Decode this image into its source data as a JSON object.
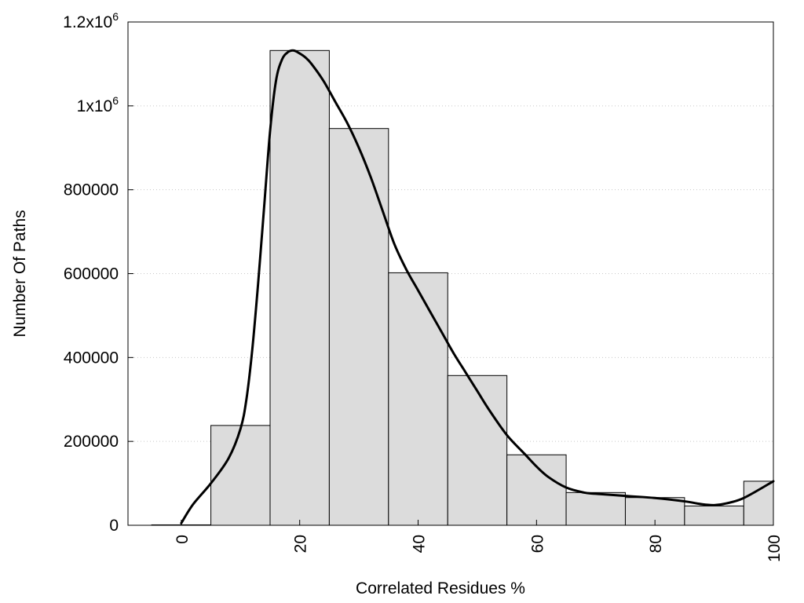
{
  "chart_data": {
    "type": "bar",
    "xlabel": "Correlated Residues %",
    "ylabel": "Number Of Paths",
    "xlim": [
      -9,
      100
    ],
    "ylim": [
      0,
      1200000
    ],
    "bin_width": 10,
    "bins": [
      0,
      10,
      20,
      30,
      40,
      50,
      60,
      70,
      80,
      90,
      100
    ],
    "values": [
      1000,
      238000,
      1132000,
      946000,
      602000,
      357000,
      168000,
      78000,
      66000,
      46000,
      105000
    ],
    "x_ticks": [
      "0",
      "20",
      "40",
      "60",
      "80",
      "100"
    ],
    "y_ticks": [
      "0",
      "200000",
      "400000",
      "600000",
      "800000",
      "1x10^6",
      "1.2x10^6"
    ],
    "smooth_curve": {
      "x": [
        0,
        2,
        5,
        8,
        10,
        11,
        12,
        13,
        14,
        15,
        16,
        17,
        18,
        19,
        20,
        21,
        22,
        24,
        26,
        28,
        30,
        32,
        34,
        36,
        38,
        40,
        42,
        44,
        46,
        48,
        50,
        52,
        55,
        58,
        60,
        62,
        65,
        68,
        70,
        75,
        80,
        85,
        88,
        90,
        92,
        95,
        100
      ],
      "y": [
        5000,
        50000,
        100000,
        160000,
        230000,
        300000,
        420000,
        580000,
        760000,
        940000,
        1060000,
        1110000,
        1128000,
        1132000,
        1125000,
        1115000,
        1100000,
        1060000,
        1010000,
        960000,
        900000,
        830000,
        750000,
        670000,
        610000,
        560000,
        510000,
        460000,
        410000,
        365000,
        320000,
        275000,
        215000,
        170000,
        140000,
        115000,
        90000,
        78000,
        75000,
        70000,
        65000,
        57000,
        50000,
        48000,
        52000,
        65000,
        105000
      ]
    },
    "grid": "horizontal-dotted",
    "colors": {
      "bar_fill": "#dcdcdc",
      "bar_stroke": "#000000",
      "curve": "#000000"
    }
  }
}
